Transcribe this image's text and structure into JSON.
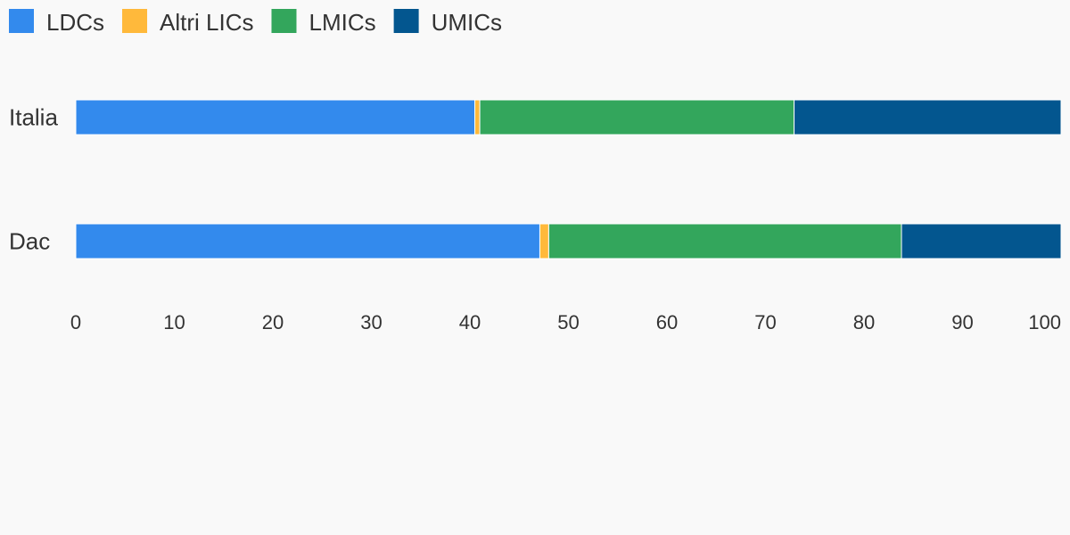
{
  "chart_data": {
    "type": "bar",
    "orientation": "horizontal",
    "stacked": true,
    "categories": [
      "Italia",
      "Dac"
    ],
    "series": [
      {
        "name": "LDCs",
        "color": "#338aed",
        "values": [
          40.5,
          47.1
        ]
      },
      {
        "name": "Altri LICs",
        "color": "#ffb93b",
        "values": [
          0.5,
          0.9
        ]
      },
      {
        "name": "LMICs",
        "color": "#33a65c",
        "values": [
          31.9,
          35.8
        ]
      },
      {
        "name": "UMICs",
        "color": "#03568f",
        "values": [
          27.1,
          16.2
        ]
      }
    ],
    "xlim": [
      0,
      100
    ],
    "xticks": [
      0,
      10,
      20,
      30,
      40,
      50,
      60,
      70,
      80,
      90,
      100
    ],
    "legend": "top-left"
  }
}
